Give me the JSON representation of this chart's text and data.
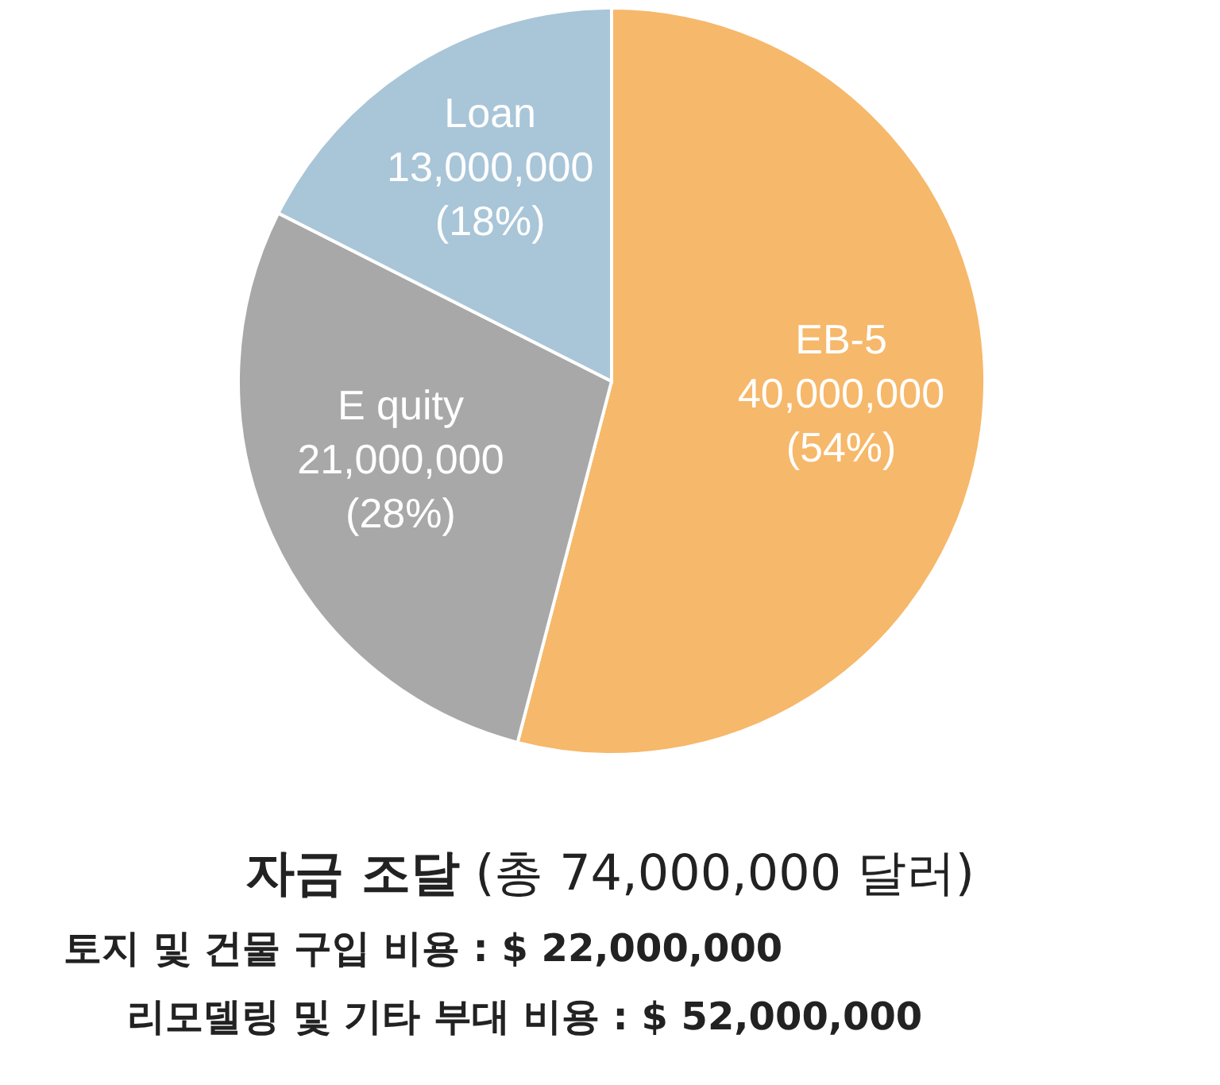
{
  "chart_data": {
    "type": "pie",
    "title": "**자금 조달** (총 74,000,000 달러)",
    "categories": [
      "EB-5",
      "E quity",
      "Loan"
    ],
    "values": [
      40000000,
      21000000,
      13000000
    ],
    "value_labels": [
      "40,000,000 (54%)",
      "21,000,000 (28%)",
      "13,000,000 (18%)"
    ],
    "colors": [
      "#f6b86a",
      "#a8a8a8",
      "#a9c5d8"
    ],
    "annotations": [
      "토지 및 건물 구입  비용 : $ 22,000,000",
      "리모델링 및 기타 부대 비용 : $ 52,000,000"
    ]
  }
}
